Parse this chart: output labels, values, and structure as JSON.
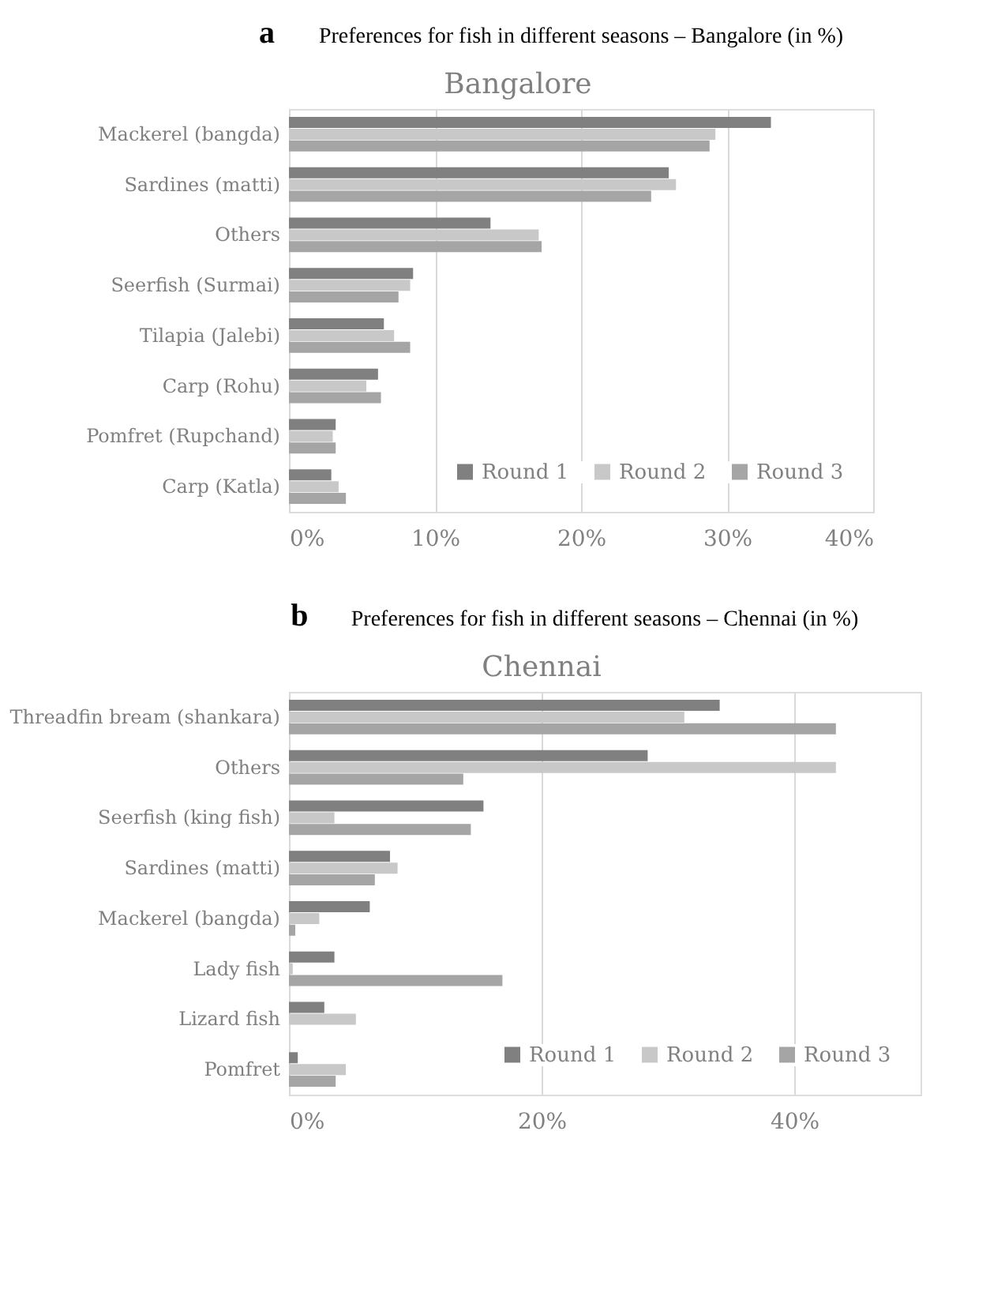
{
  "chart_data": [
    {
      "type": "bar",
      "orientation": "horizontal",
      "title": "Preferences for fish in different seasons – Bangalore (in %)",
      "subtitle": "Bangalore",
      "annotations": [
        "a"
      ],
      "categories": [
        "Mackerel (bangda)",
        "Sardines (matti)",
        "Others",
        "Seerfish (Surmai)",
        "Tilapia (Jalebi)",
        "Carp (Rohu)",
        "Pomfret (Rupchand)",
        "Carp (Katla)"
      ],
      "series": [
        {
          "name": "Round 1",
          "color": "#808080",
          "values": [
            33.0,
            26.0,
            13.8,
            8.5,
            6.5,
            6.1,
            3.2,
            2.9
          ]
        },
        {
          "name": "Round 2",
          "color": "#c8c8c8",
          "values": [
            29.2,
            26.5,
            17.1,
            8.3,
            7.2,
            5.3,
            3.0,
            3.4
          ]
        },
        {
          "name": "Round 3",
          "color": "#a5a5a5",
          "values": [
            28.8,
            24.8,
            17.3,
            7.5,
            8.3,
            6.3,
            3.2,
            3.9
          ]
        }
      ],
      "xlim": [
        0,
        40
      ],
      "xticks": [
        {
          "value": 0,
          "label": "0%"
        },
        {
          "value": 10,
          "label": "10%"
        },
        {
          "value": 20,
          "label": "20%"
        },
        {
          "value": 30,
          "label": "30%"
        },
        {
          "value": 40,
          "label": "40%"
        }
      ],
      "grid": "x",
      "legend": "bottom right"
    },
    {
      "type": "bar",
      "orientation": "horizontal",
      "title": "Preferences for fish in different seasons – Chennai (in %)",
      "subtitle": "Chennai",
      "annotations": [
        "b"
      ],
      "categories": [
        "Threadfin bream (shankara)",
        "Others",
        "Seerfish (king fish)",
        "Sardines (matti)",
        "Mackerel (bangda)",
        "Lady fish",
        "Lizard fish",
        "Pomfret"
      ],
      "series": [
        {
          "name": "Round 1",
          "color": "#808080",
          "values": [
            34.1,
            28.4,
            15.4,
            8.0,
            6.4,
            3.6,
            2.8,
            0.7
          ]
        },
        {
          "name": "Round 2",
          "color": "#c8c8c8",
          "values": [
            31.3,
            43.3,
            3.6,
            8.6,
            2.4,
            0.3,
            5.3,
            4.5
          ]
        },
        {
          "name": "Round 3",
          "color": "#a5a5a5",
          "values": [
            43.3,
            13.8,
            14.4,
            6.8,
            0.5,
            16.9,
            0,
            3.7
          ]
        }
      ],
      "xlim": [
        0,
        50
      ],
      "xticks": [
        {
          "value": 0,
          "label": "0%"
        },
        {
          "value": 20,
          "label": "20%"
        },
        {
          "value": 40,
          "label": "40%"
        }
      ],
      "grid": "x",
      "legend": "bottom right"
    }
  ]
}
